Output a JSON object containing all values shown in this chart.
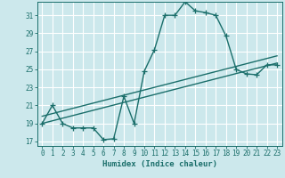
{
  "xlabel": "Humidex (Indice chaleur)",
  "bg_color": "#cce8ec",
  "grid_color": "#ffffff",
  "line_color": "#1a6e6a",
  "xlim": [
    -0.5,
    23.5
  ],
  "ylim": [
    16.5,
    32.5
  ],
  "xticks": [
    0,
    1,
    2,
    3,
    4,
    5,
    6,
    7,
    8,
    9,
    10,
    11,
    12,
    13,
    14,
    15,
    16,
    17,
    18,
    19,
    20,
    21,
    22,
    23
  ],
  "yticks": [
    17,
    19,
    21,
    23,
    25,
    27,
    29,
    31
  ],
  "curve1_x": [
    0,
    1,
    2,
    3,
    4,
    5,
    6,
    7,
    8,
    9,
    10,
    11,
    12,
    13,
    14,
    15,
    16,
    17,
    18,
    19,
    20,
    21,
    22,
    23
  ],
  "curve1_y": [
    19,
    21,
    19,
    18.5,
    18.5,
    18.5,
    17.2,
    17.3,
    22,
    19,
    24.8,
    27.2,
    31,
    31,
    32.5,
    31.5,
    31.3,
    31,
    28.7,
    25,
    24.5,
    24.4,
    25.5,
    25.5
  ],
  "line2_x": [
    0,
    23
  ],
  "line2_y": [
    19.0,
    25.7
  ],
  "line3_x": [
    0,
    23
  ],
  "line3_y": [
    19.8,
    26.5
  ],
  "marker": "+",
  "markersize": 4,
  "linewidth": 1.0
}
